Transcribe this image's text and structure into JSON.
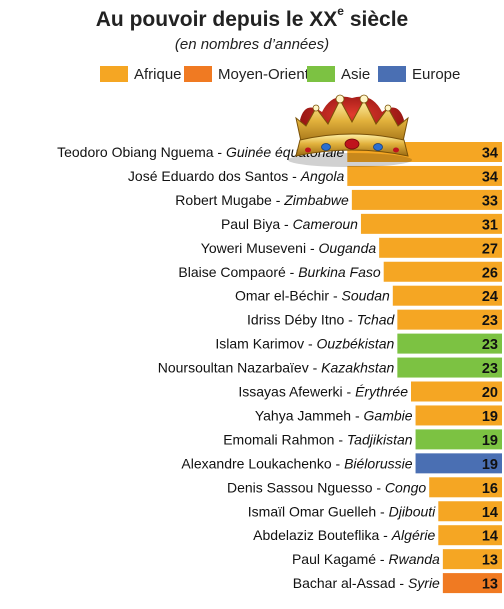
{
  "header": {
    "title": "Au pouvoir depuis le XX",
    "title_sup": "e",
    "title_end": " siècle",
    "subtitle": "(en nombres d’années)"
  },
  "colors": {
    "Afrique": "#f5a623",
    "Moyen-Orient": "#f07a22",
    "Asie": "#7cc242",
    "Europe": "#4a6fb3",
    "value_text": "#111111"
  },
  "decoration": {
    "icon": "crown-icon"
  },
  "chart_data": {
    "type": "bar",
    "orientation": "horizontal",
    "title": "Au pouvoir depuis le XXe siècle",
    "subtitle": "(en nombres d’années)",
    "legend": [
      "Afrique",
      "Moyen-Orient",
      "Asie",
      "Europe"
    ],
    "legend_position": "top",
    "xlim": [
      0,
      34
    ],
    "grid": false,
    "rows": [
      {
        "name": "Teodoro Obiang Nguema",
        "country": "Guinée équatoriale",
        "value": 34,
        "region": "Afrique"
      },
      {
        "name": "José Eduardo dos Santos",
        "country": "Angola",
        "value": 34,
        "region": "Afrique"
      },
      {
        "name": "Robert Mugabe",
        "country": "Zimbabwe",
        "value": 33,
        "region": "Afrique"
      },
      {
        "name": "Paul Biya",
        "country": "Cameroun",
        "value": 31,
        "region": "Afrique"
      },
      {
        "name": "Yoweri Museveni",
        "country": "Ouganda",
        "value": 27,
        "region": "Afrique"
      },
      {
        "name": "Blaise Compaoré",
        "country": "Burkina Faso",
        "value": 26,
        "region": "Afrique"
      },
      {
        "name": "Omar el-Béchir",
        "country": "Soudan",
        "value": 24,
        "region": "Afrique"
      },
      {
        "name": "Idriss Déby Itno",
        "country": "Tchad",
        "value": 23,
        "region": "Afrique"
      },
      {
        "name": "Islam Karimov",
        "country": "Ouzbékistan",
        "value": 23,
        "region": "Asie"
      },
      {
        "name": "Noursoultan Nazarbaïev",
        "country": "Kazakhstan",
        "value": 23,
        "region": "Asie"
      },
      {
        "name": "Issayas Afewerki",
        "country": "Érythrée",
        "value": 20,
        "region": "Afrique"
      },
      {
        "name": "Yahya Jammeh",
        "country": "Gambie",
        "value": 19,
        "region": "Afrique"
      },
      {
        "name": "Emomali Rahmon",
        "country": "Tadjikistan",
        "value": 19,
        "region": "Asie"
      },
      {
        "name": "Alexandre Loukachenko",
        "country": "Biélorussie",
        "value": 19,
        "region": "Europe"
      },
      {
        "name": "Denis Sassou Nguesso",
        "country": "Congo",
        "value": 16,
        "region": "Afrique"
      },
      {
        "name": "Ismaïl Omar Guelleh",
        "country": "Djibouti",
        "value": 14,
        "region": "Afrique"
      },
      {
        "name": "Abdelaziz Bouteflika",
        "country": "Algérie",
        "value": 14,
        "region": "Afrique"
      },
      {
        "name": "Paul Kagamé",
        "country": "Rwanda",
        "value": 13,
        "region": "Afrique"
      },
      {
        "name": "Bachar al-Assad",
        "country": "Syrie",
        "value": 13,
        "region": "Moyen-Orient"
      }
    ]
  }
}
